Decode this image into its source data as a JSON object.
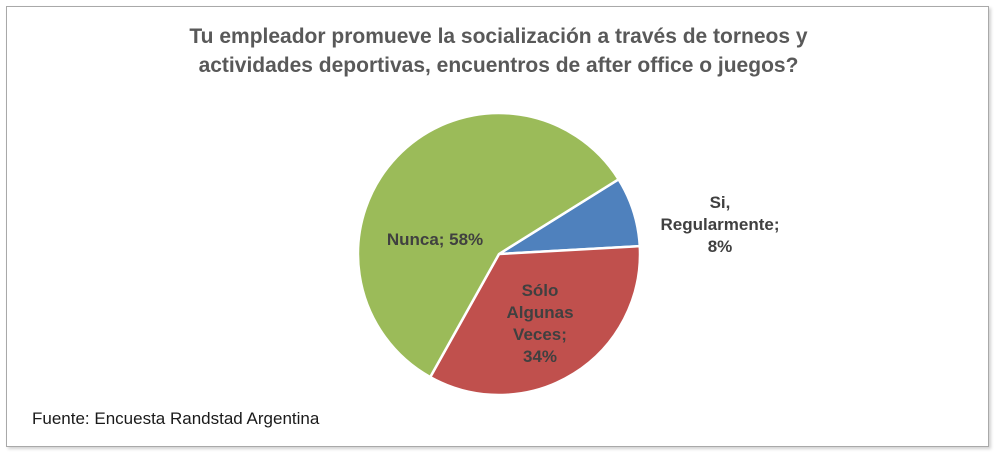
{
  "chart_data": {
    "type": "pie",
    "title_lines": [
      "Tu empleador promueve la socialización a través de torneos  y",
      "actividades deportivas,  encuentros  de after office o juegos?"
    ],
    "slices": [
      {
        "label_lines": [
          "Si,",
          "Regularmente;",
          "8%"
        ],
        "value": 8,
        "color": "#4f81bd"
      },
      {
        "label_lines": [
          "Sólo",
          "Algunas",
          "Veces;",
          "34%"
        ],
        "value": 34,
        "color": "#c0504d"
      },
      {
        "label_lines": [
          "Nunca; 58%"
        ],
        "value": 58,
        "color": "#9bbb59"
      }
    ]
  },
  "source": "Fuente: Encuesta Randstad Argentina"
}
